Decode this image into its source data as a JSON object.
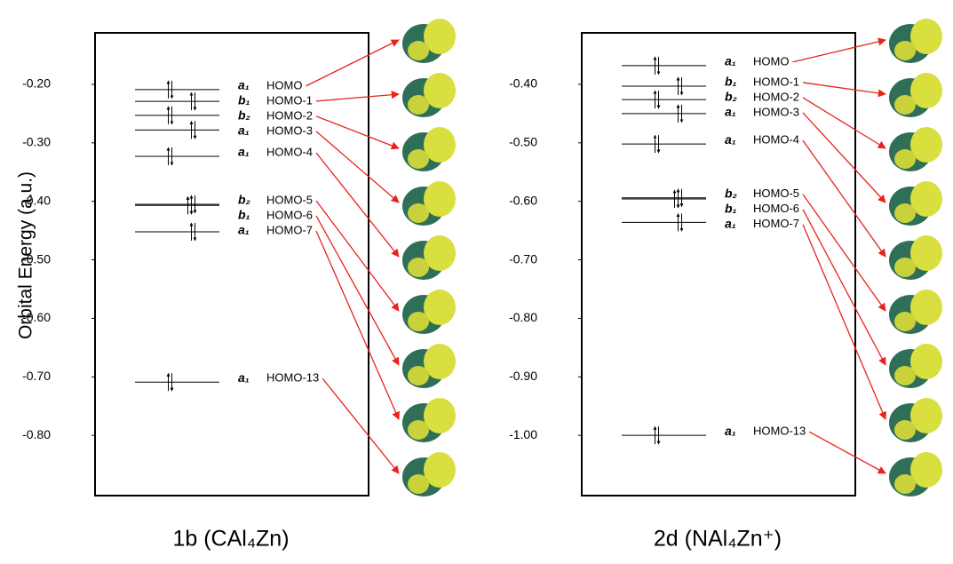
{
  "chart_data": [
    {
      "type": "energy-level",
      "title": "1b (CAl₄Zn)",
      "ylabel": "Orbital Energy (a.u.)",
      "categories": [
        "HOMO",
        "HOMO-1",
        "HOMO-2",
        "HOMO-3",
        "HOMO-4",
        "HOMO-5",
        "HOMO-6",
        "HOMO-7",
        "HOMO-13"
      ],
      "symmetry": [
        "a₁",
        "b₁",
        "b₂",
        "a₁",
        "a₁",
        "b₂",
        "b₁",
        "a₁",
        "a₁"
      ],
      "values": [
        -0.209,
        -0.229,
        -0.253,
        -0.278,
        -0.323,
        -0.405,
        -0.407,
        -0.452,
        -0.709
      ],
      "ylim": [
        -0.903,
        -0.112
      ],
      "yticks": [
        {
          "value": -0.2,
          "label": "-0.20"
        },
        {
          "value": -0.3,
          "label": "-0.30"
        },
        {
          "value": -0.4,
          "label": "-0.40"
        },
        {
          "value": -0.5,
          "label": "-0.50"
        },
        {
          "value": -0.6,
          "label": "-0.60"
        },
        {
          "value": -0.7,
          "label": "-0.70"
        },
        {
          "value": -0.8,
          "label": "-0.80"
        }
      ],
      "arrow_color": "#e8231c"
    },
    {
      "type": "energy-level",
      "title": "2d (NAl₄Zn⁺)",
      "categories": [
        "HOMO",
        "HOMO-1",
        "HOMO-2",
        "HOMO-3",
        "HOMO-4",
        "HOMO-5",
        "HOMO-6",
        "HOMO-7",
        "HOMO-13"
      ],
      "symmetry": [
        "a₁",
        "b₁",
        "b₂",
        "a₁",
        "a₁",
        "b₂",
        "b₁",
        "a₁",
        "a₁"
      ],
      "values": [
        -0.368,
        -0.403,
        -0.426,
        -0.45,
        -0.502,
        -0.594,
        -0.596,
        -0.636,
        -1.0
      ],
      "ylim": [
        -1.103,
        -0.312
      ],
      "yticks": [
        {
          "value": -0.4,
          "label": "-0.40"
        },
        {
          "value": -0.5,
          "label": "-0.50"
        },
        {
          "value": -0.6,
          "label": "-0.60"
        },
        {
          "value": -0.7,
          "label": "-0.70"
        },
        {
          "value": -0.8,
          "label": "-0.80"
        },
        {
          "value": -0.9,
          "label": "-0.90"
        },
        {
          "value": -1.0,
          "label": "-1.00"
        }
      ],
      "arrow_color": "#e8231c"
    }
  ]
}
